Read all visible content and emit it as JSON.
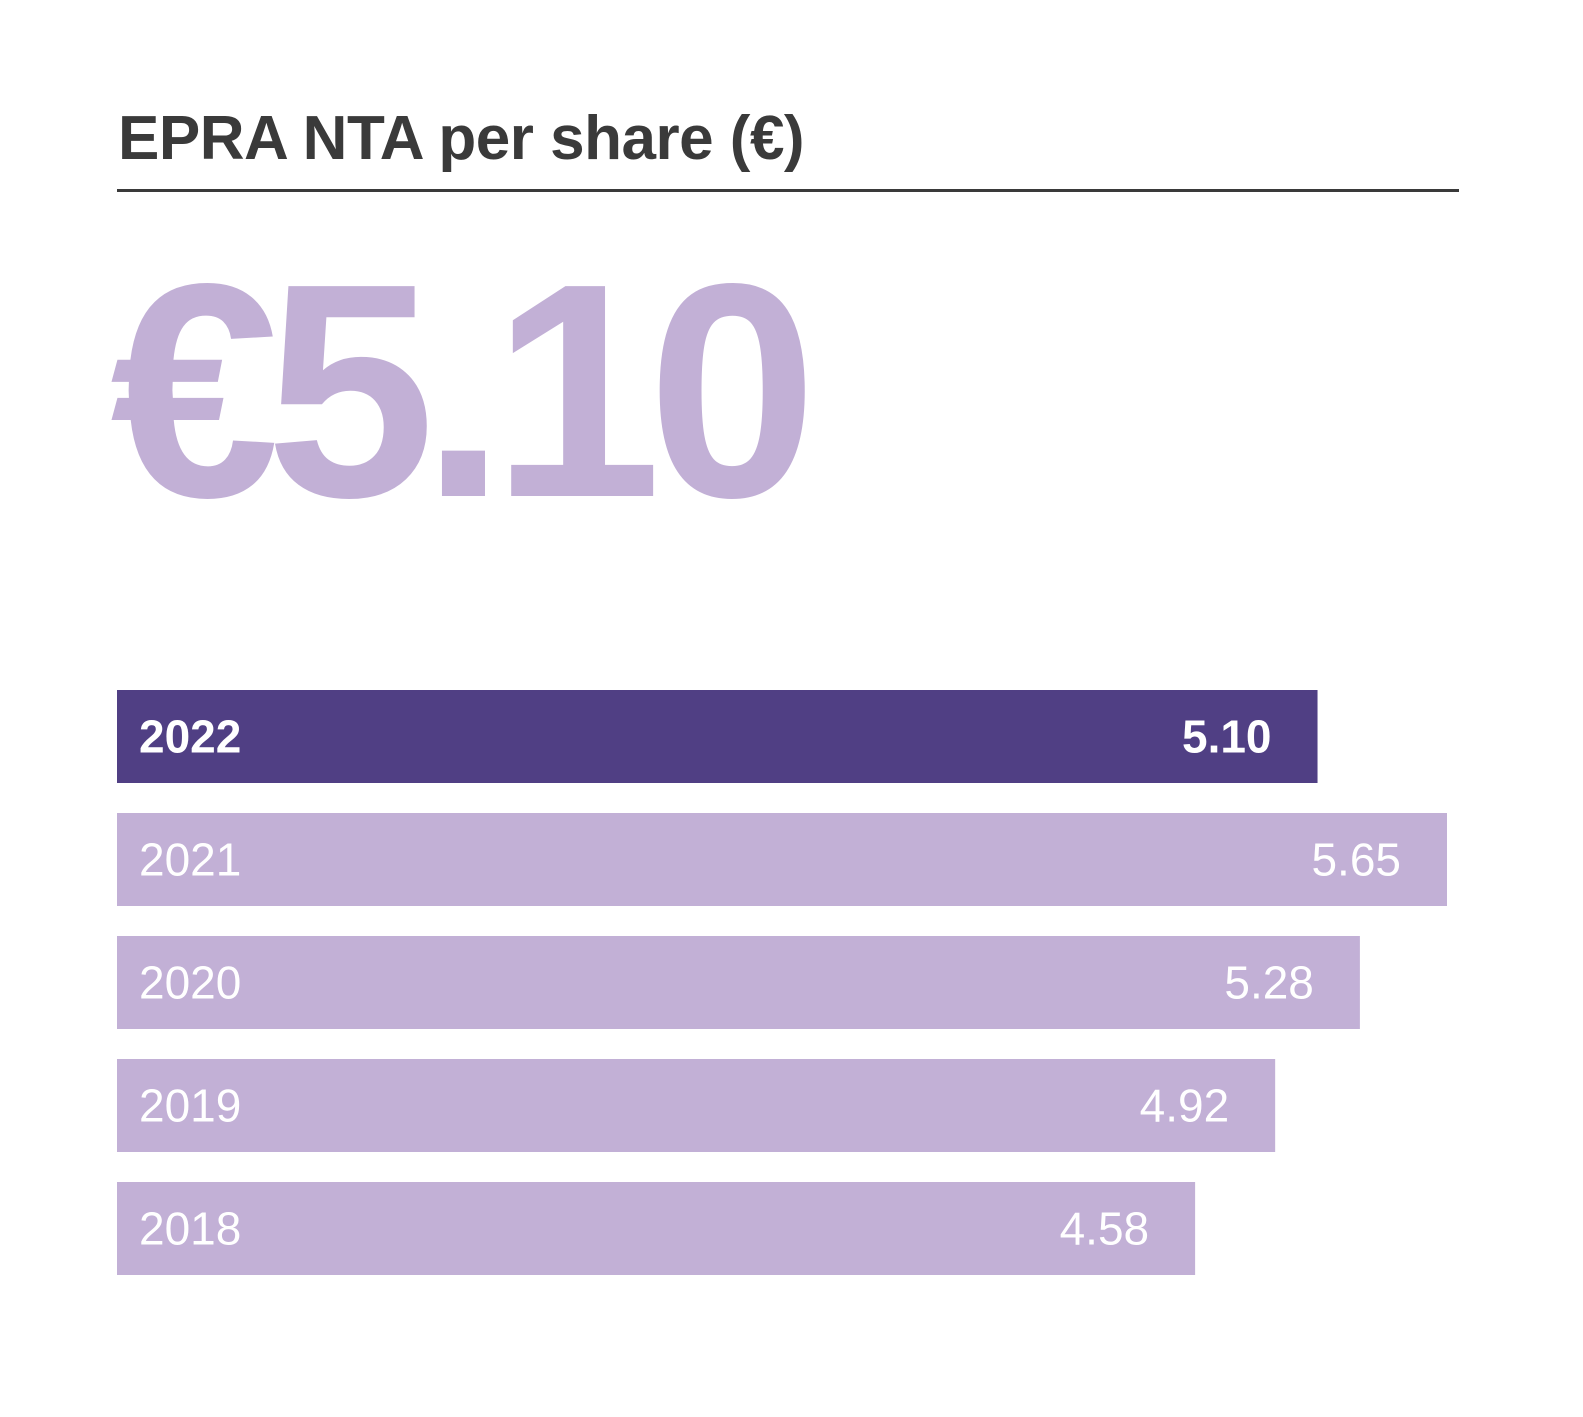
{
  "header": {
    "title": "EPRA NTA per share (€)",
    "headline_value": "€5.10"
  },
  "colors": {
    "highlight_bar": "#503f84",
    "normal_bar": "#c2b0d6",
    "headline": "#c2b0d6",
    "text_dark": "#3a3a3a",
    "bar_text": "#ffffff"
  },
  "chart_data": {
    "type": "bar",
    "orientation": "horizontal",
    "title": "EPRA NTA per share (€)",
    "categories": [
      "2022",
      "2021",
      "2020",
      "2019",
      "2018"
    ],
    "values": [
      5.1,
      5.65,
      5.28,
      4.92,
      4.58
    ],
    "value_labels": [
      "5.10",
      "5.65",
      "5.28",
      "4.92",
      "4.58"
    ],
    "highlighted_category": "2022",
    "xlim": [
      0,
      5.65
    ],
    "grid": false,
    "legend": "none"
  }
}
